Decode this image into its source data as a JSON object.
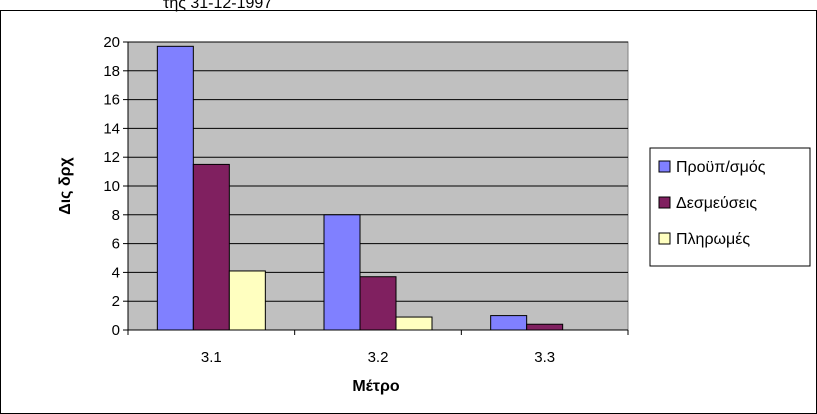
{
  "chart_data": {
    "type": "bar",
    "title_fragment": "της 31-12-1997",
    "xlabel": "Μέτρο",
    "ylabel": "Δις δρχ",
    "categories": [
      "3.1",
      "3.2",
      "3.3"
    ],
    "series": [
      {
        "name": "Προϋπ/σμός",
        "values": [
          19.7,
          8.0,
          1.0
        ],
        "color": "#8080ff"
      },
      {
        "name": "Δεσμεύσεις",
        "values": [
          11.5,
          3.7,
          0.4
        ],
        "color": "#802060"
      },
      {
        "name": "Πληρωμές",
        "values": [
          4.1,
          0.9,
          0.0
        ],
        "color": "#ffffc0"
      }
    ],
    "ylim": [
      0,
      20
    ],
    "yticks": [
      "0",
      "2",
      "4",
      "6",
      "8",
      "10",
      "12",
      "14",
      "16",
      "18",
      "20"
    ],
    "grid": true,
    "plot_background": "#c0c0c0",
    "legend_position": "right"
  }
}
